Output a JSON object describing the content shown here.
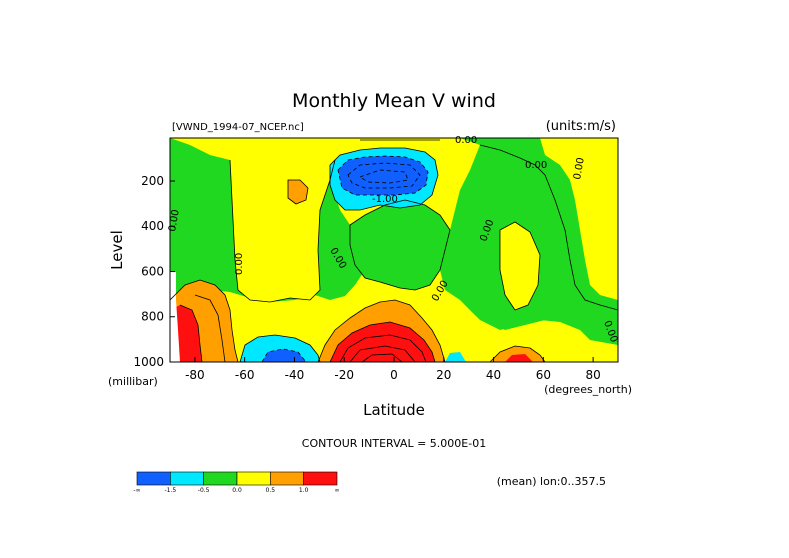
{
  "chart_data": {
    "type": "heatmap",
    "title": "Monthly Mean V wind",
    "file_label": "[VWND_1994-07_NCEP.nc]",
    "units_label": "(units:m/s)",
    "xlabel": "Latitude",
    "x_unit": "(degrees_north)",
    "ylabel": "Level",
    "y_unit": "(millibar)",
    "xlim": [
      -90,
      90
    ],
    "ylim": [
      1000,
      10
    ],
    "y_reversed": true,
    "x_ticks": [
      -80,
      -60,
      -40,
      -20,
      0,
      20,
      40,
      60,
      80
    ],
    "y_ticks": [
      200,
      400,
      600,
      800,
      1000
    ],
    "x_tick_labels": [
      "-80",
      "-60",
      "-40",
      "-20",
      "0",
      "20",
      "40",
      "60",
      "80"
    ],
    "y_tick_labels": [
      "200",
      "400",
      "600",
      "800",
      "1000"
    ],
    "contour_interval_text": "CONTOUR INTERVAL = 5.000E-01",
    "mean_text": "(mean) lon:0..357.5",
    "contour_labels": [
      "0.00",
      "-1.00",
      "0.00",
      "0.00",
      "0.00",
      "0.00",
      "0.00",
      "0.00",
      "0.00",
      "0.00"
    ],
    "colorbar": {
      "colors": [
        "#1060ff",
        "#00e8ff",
        "#20d820",
        "#ffff00",
        "#ffa000",
        "#ff1010"
      ],
      "labels": [
        "-∞",
        "-1.5",
        "-0.5",
        "0.0",
        "0.5",
        "1.0",
        "∞"
      ]
    },
    "grid": false,
    "legend": "colorbar bottom-left",
    "features": [
      {
        "name": "southward jet core upper",
        "type": "min",
        "lat": 0,
        "level": 150,
        "value": -2.5
      },
      {
        "name": "northward flow near surface",
        "type": "max",
        "lat": -5,
        "level": 980,
        "value": 3.0
      },
      {
        "name": "southern surface low",
        "type": "min",
        "lat": -40,
        "level": 980,
        "value": -2.0
      },
      {
        "name": "high-latitude south max",
        "type": "max",
        "lat": -85,
        "level": 900,
        "value": 2.0
      },
      {
        "name": "northern surface max",
        "type": "max",
        "lat": 50,
        "level": 980,
        "value": 1.5
      }
    ]
  }
}
